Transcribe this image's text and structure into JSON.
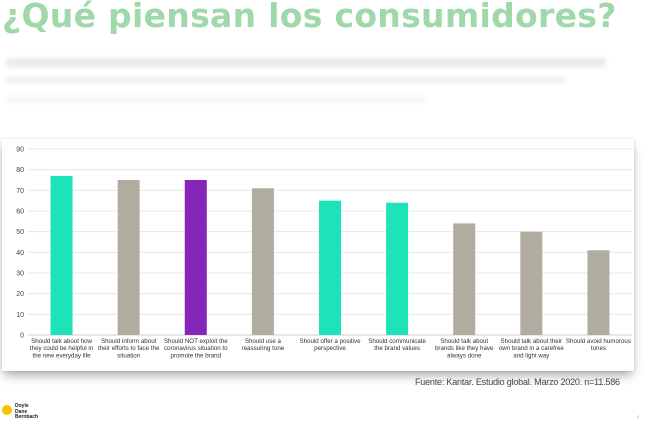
{
  "headline": "¿Qué piensan los consumidores?",
  "source": "Fuente: Kantar. Estudio global. Marzo 2020. n=11.586",
  "logo": {
    "line1": "Doyle",
    "line2": "Dane",
    "line3": "Bernbach"
  },
  "colors": {
    "teal": "#1de3b8",
    "gray": "#b0ada0",
    "purple": "#8626b8",
    "headline": "#9fd8a9",
    "logo_yellow": "#f5c400"
  },
  "chart_data": {
    "type": "bar",
    "title": "",
    "xlabel": "",
    "ylabel": "",
    "ylim": [
      0,
      90
    ],
    "yticks": [
      0,
      10,
      20,
      30,
      40,
      50,
      60,
      70,
      80,
      90
    ],
    "grid": true,
    "categories": [
      "Should talk about how they could be helpful in the new everyday life",
      "Should inform about their efforts to face the situation",
      "Should NOT exploit the coronavirus situation to promote the brand",
      "Should use a reassuring tone",
      "Should offer a positive perspective",
      "Should communicate the brand values",
      "Should talk about brands like they have always done",
      "Should talk about their own brand in a carefree and light way",
      "Should avoid humorous tones"
    ],
    "category_lines": [
      [
        "Should talk about how",
        "they could be helpful in",
        "the new everyday life"
      ],
      [
        "Should inform about",
        "their efforts to face the",
        "situation"
      ],
      [
        "Should NOT exploit the",
        "coronavirus situation to",
        "promote the brand"
      ],
      [
        "Should use a",
        "reassuring tone"
      ],
      [
        "Should offer a positive",
        "perspective"
      ],
      [
        "Should communicate",
        "the brand values"
      ],
      [
        "Should talk about",
        "brands like they have",
        "always done"
      ],
      [
        "Should talk about their",
        "own brand in a carefree",
        "and light way"
      ],
      [
        "Should avoid humorous",
        "tones"
      ]
    ],
    "values": [
      77,
      75,
      75,
      71,
      65,
      64,
      54,
      50,
      41
    ],
    "bar_colors": [
      "#1de3b8",
      "#b0ada0",
      "#8626b8",
      "#b0ada0",
      "#1de3b8",
      "#1de3b8",
      "#b0ada0",
      "#b0ada0",
      "#b0ada0"
    ]
  }
}
